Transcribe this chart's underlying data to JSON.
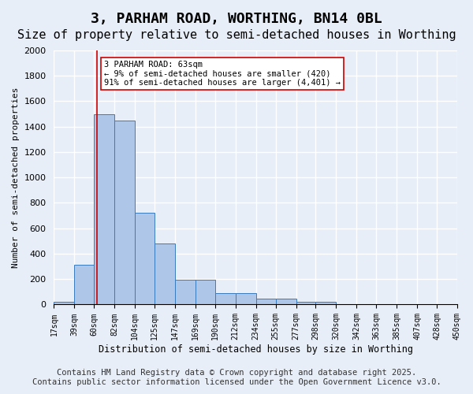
{
  "title": "3, PARHAM ROAD, WORTHING, BN14 0BL",
  "subtitle": "Size of property relative to semi-detached houses in Worthing",
  "xlabel": "Distribution of semi-detached houses by size in Worthing",
  "ylabel": "Number of semi-detached properties",
  "bin_labels": [
    "17sqm",
    "39sqm",
    "60sqm",
    "82sqm",
    "104sqm",
    "125sqm",
    "147sqm",
    "169sqm",
    "190sqm",
    "212sqm",
    "234sqm",
    "255sqm",
    "277sqm",
    "298sqm",
    "320sqm",
    "342sqm",
    "363sqm",
    "385sqm",
    "407sqm",
    "428sqm",
    "450sqm"
  ],
  "bin_edges": [
    17,
    39,
    60,
    82,
    104,
    125,
    147,
    169,
    190,
    212,
    234,
    255,
    277,
    298,
    320,
    342,
    363,
    385,
    407,
    428,
    450
  ],
  "bar_heights": [
    20,
    310,
    1500,
    1450,
    720,
    480,
    195,
    195,
    90,
    90,
    45,
    45,
    20,
    20,
    5,
    5,
    0,
    0,
    0,
    0
  ],
  "bar_color": "#aec6e8",
  "bar_edge_color": "#3a7abf",
  "background_color": "#e8eef8",
  "grid_color": "#ffffff",
  "red_line_x": 63,
  "annotation_text": "3 PARHAM ROAD: 63sqm\n← 9% of semi-detached houses are smaller (420)\n91% of semi-detached houses are larger (4,401) →",
  "annotation_box_color": "#ffffff",
  "annotation_box_edge_color": "#cc0000",
  "ylim": [
    0,
    2000
  ],
  "yticks": [
    0,
    200,
    400,
    600,
    800,
    1000,
    1200,
    1400,
    1600,
    1800,
    2000
  ],
  "footer_line1": "Contains HM Land Registry data © Crown copyright and database right 2025.",
  "footer_line2": "Contains public sector information licensed under the Open Government Licence v3.0.",
  "title_fontsize": 13,
  "subtitle_fontsize": 11,
  "footer_fontsize": 7.5
}
